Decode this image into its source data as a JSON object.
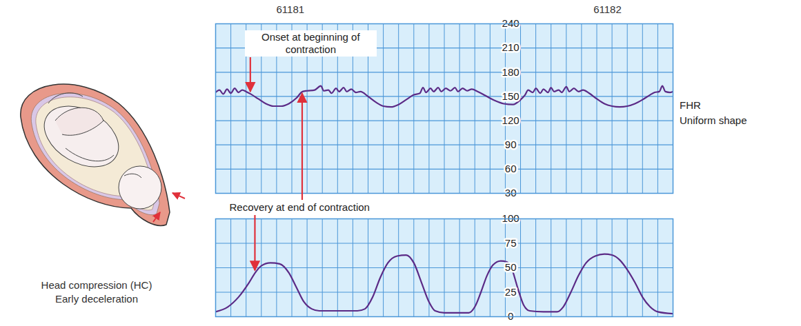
{
  "chart_data": [
    {
      "type": "line",
      "color": "#5b2a86",
      "grid": true,
      "tick_labels": "y",
      "xlim": [
        0,
        30
      ],
      "xticks": [
        0,
        1,
        2,
        3,
        4,
        5,
        6,
        7,
        8,
        9,
        10,
        11,
        12,
        13,
        14,
        15,
        16,
        17,
        18,
        19,
        20,
        21,
        22,
        23,
        24,
        25,
        26,
        27,
        28,
        29,
        30
      ],
      "ylim": [
        30,
        240
      ],
      "yticks": [
        30,
        60,
        90,
        120,
        150,
        180,
        210,
        240
      ],
      "markers": [
        {
          "text": "61181",
          "x": 4.9
        },
        {
          "text": "61182",
          "x": 25.7
        }
      ],
      "side_labels": [
        "FHR",
        "Uniform shape"
      ],
      "x": [
        0,
        0.25,
        0.5,
        0.75,
        1,
        1.25,
        1.5,
        1.75,
        2,
        2.3,
        2.8,
        3.3,
        3.8,
        4.3,
        4.8,
        5.3,
        5.7,
        6.0,
        6.5,
        6.9,
        7.1,
        7.4,
        7.6,
        7.9,
        8.1,
        8.4,
        8.6,
        8.9,
        9.2,
        9.5,
        10.0,
        10.5,
        11.0,
        11.5,
        12.0,
        12.5,
        13.0,
        13.4,
        13.6,
        13.8,
        14.1,
        14.3,
        14.6,
        14.8,
        15.1,
        15.4,
        15.7,
        15.9,
        16.2,
        16.5,
        16.8,
        17.2,
        17.7,
        18.3,
        18.9,
        19.5,
        20.0,
        20.3,
        20.5,
        20.8,
        21.0,
        21.3,
        21.5,
        21.8,
        22.0,
        22.2,
        22.5,
        22.7,
        23.0,
        23.2,
        23.5,
        23.8,
        24.1,
        24.5,
        25.0,
        25.5,
        26.0,
        26.5,
        27.0,
        27.5,
        28.0,
        28.5,
        28.8,
        29.1,
        29.3,
        29.5,
        29.8,
        30
      ],
      "values": [
        155,
        158,
        153,
        159,
        154,
        160,
        155,
        158,
        156,
        153,
        147,
        141,
        138,
        138,
        141,
        148,
        156,
        157,
        158,
        163,
        157,
        158,
        154,
        160,
        156,
        161,
        156,
        159,
        155,
        156,
        150,
        143,
        138,
        137,
        140,
        146,
        152,
        154,
        161,
        155,
        160,
        156,
        161,
        156,
        160,
        157,
        161,
        156,
        160,
        157,
        159,
        156,
        151,
        145,
        141,
        140,
        146,
        152,
        158,
        155,
        160,
        154,
        159,
        155,
        161,
        156,
        158,
        155,
        162,
        156,
        160,
        156,
        158,
        154,
        147,
        141,
        138,
        137,
        138,
        141,
        146,
        152,
        155,
        156,
        163,
        156,
        155,
        156
      ]
    },
    {
      "type": "line",
      "color": "#5b2a86",
      "grid": true,
      "tick_labels": "y",
      "xlim": [
        0,
        30
      ],
      "xticks": [
        0,
        1,
        2,
        3,
        4,
        5,
        6,
        7,
        8,
        9,
        10,
        11,
        12,
        13,
        14,
        15,
        16,
        17,
        18,
        19,
        20,
        21,
        22,
        23,
        24,
        25,
        26,
        27,
        28,
        29,
        30
      ],
      "ylim": [
        0,
        100
      ],
      "yticks": [
        0,
        25,
        50,
        75,
        100
      ],
      "x": [
        0,
        0.8,
        1.5,
        2.2,
        2.6,
        3.0,
        3.6,
        4.2,
        4.8,
        5.3,
        5.8,
        6.3,
        6.8,
        8.0,
        9.3,
        9.8,
        10.3,
        10.8,
        11.3,
        11.9,
        12.5,
        13.0,
        13.5,
        14.0,
        14.4,
        15.0,
        16.0,
        16.6,
        17.0,
        17.4,
        17.8,
        18.2,
        18.7,
        19.1,
        19.4,
        19.8,
        20.2,
        20.6,
        21.5,
        22.4,
        22.8,
        23.3,
        23.8,
        24.3,
        24.9,
        25.5,
        26.0,
        26.5,
        27.0,
        27.5,
        28.0,
        28.5,
        29.0,
        30
      ],
      "values": [
        5,
        10,
        20,
        35,
        45,
        52,
        55,
        54,
        45,
        30,
        15,
        8,
        6,
        6,
        6,
        8,
        20,
        40,
        55,
        62,
        63,
        55,
        35,
        15,
        6,
        4,
        4,
        4,
        10,
        25,
        42,
        53,
        57,
        56,
        50,
        30,
        12,
        6,
        5,
        5,
        10,
        25,
        42,
        55,
        62,
        64,
        63,
        58,
        48,
        35,
        20,
        10,
        5,
        3
      ]
    }
  ],
  "annotations": [
    {
      "text": "Onset at beginning of contraction",
      "arrows": [
        {
          "chart": 0,
          "x": 2.3,
          "y": 153
        }
      ]
    },
    {
      "text": "Recovery at end of contraction",
      "arrows": [
        {
          "chart": 0,
          "x": 5.7,
          "y": 156
        },
        {
          "chart": 1,
          "x": 2.6,
          "y": 45
        }
      ]
    }
  ],
  "illustration": {
    "caption": [
      "Head compression (HC)",
      "Early deceleration"
    ]
  }
}
